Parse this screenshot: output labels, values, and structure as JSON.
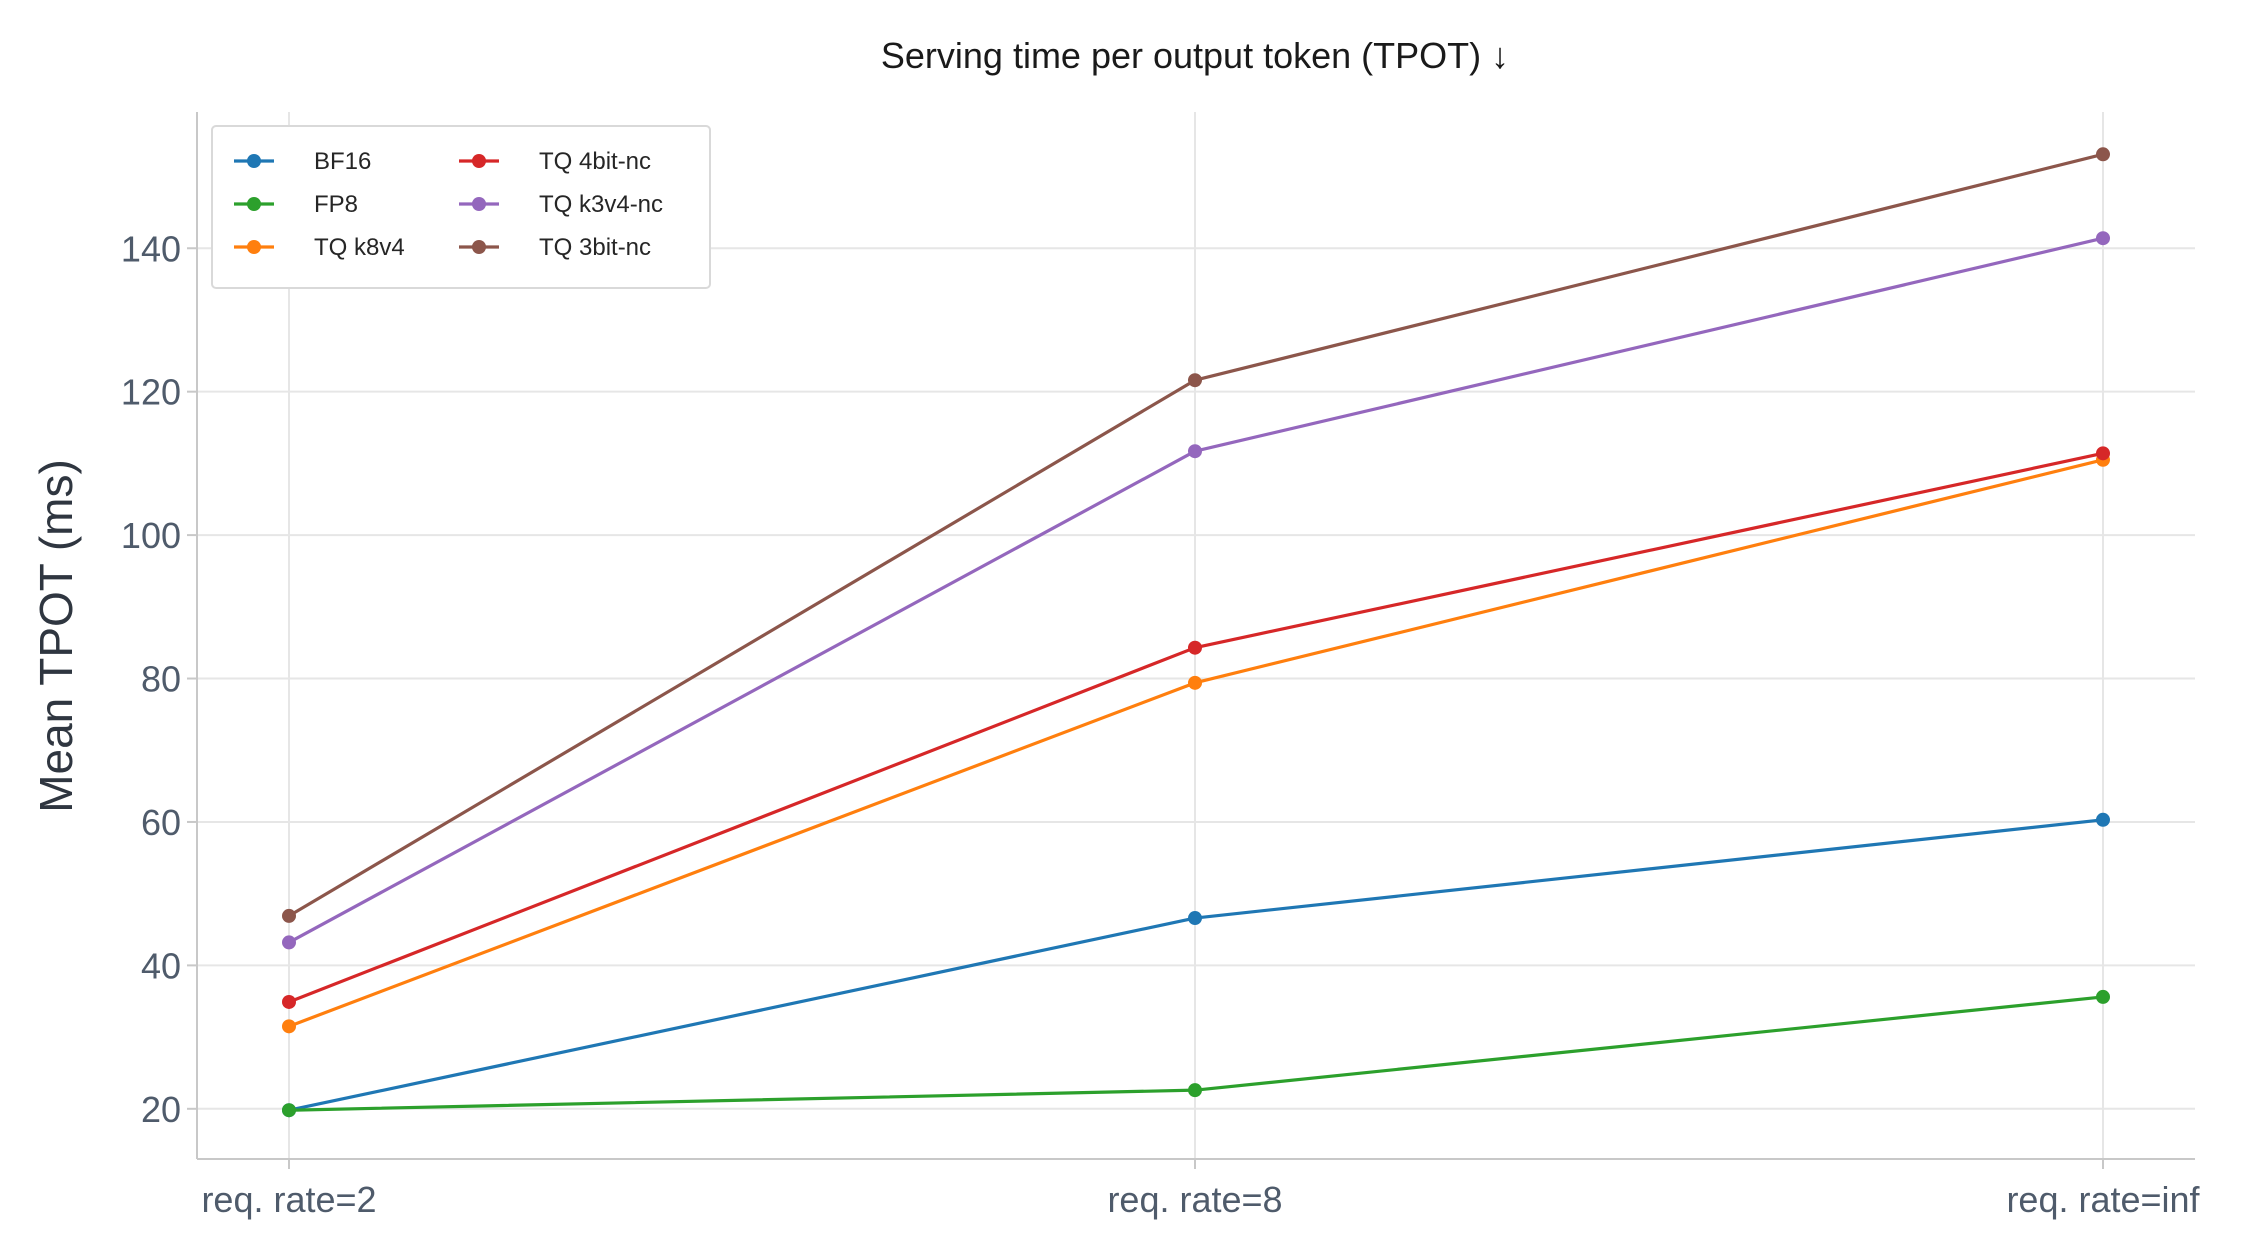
{
  "chart_data": {
    "type": "line",
    "title": "Serving time per output token (TPOT)  ↓",
    "xlabel": "",
    "ylabel": "Mean TPOT (ms)",
    "categories": [
      "req. rate=2",
      "req. rate=8",
      "req. rate=inf"
    ],
    "yticks": [
      20,
      40,
      60,
      80,
      100,
      120,
      140
    ],
    "ylim": [
      13,
      159
    ],
    "grid": true,
    "legend_placement": "top-left",
    "series": [
      {
        "name": "BF16",
        "color": "#1f77b4",
        "values": [
          19.8,
          46.6,
          60.3
        ]
      },
      {
        "name": "FP8",
        "color": "#2ca02c",
        "values": [
          19.8,
          22.6,
          35.6
        ]
      },
      {
        "name": "TQ k8v4",
        "color": "#ff7f0e",
        "values": [
          31.5,
          79.4,
          110.5
        ]
      },
      {
        "name": "TQ 4bit-nc",
        "color": "#d62728",
        "values": [
          34.9,
          84.3,
          111.4
        ]
      },
      {
        "name": "TQ k3v4-nc",
        "color": "#9467bd",
        "values": [
          43.2,
          111.7,
          141.4
        ]
      },
      {
        "name": "TQ 3bit-nc",
        "color": "#8c564b",
        "values": [
          46.9,
          121.6,
          153.1
        ]
      }
    ]
  }
}
